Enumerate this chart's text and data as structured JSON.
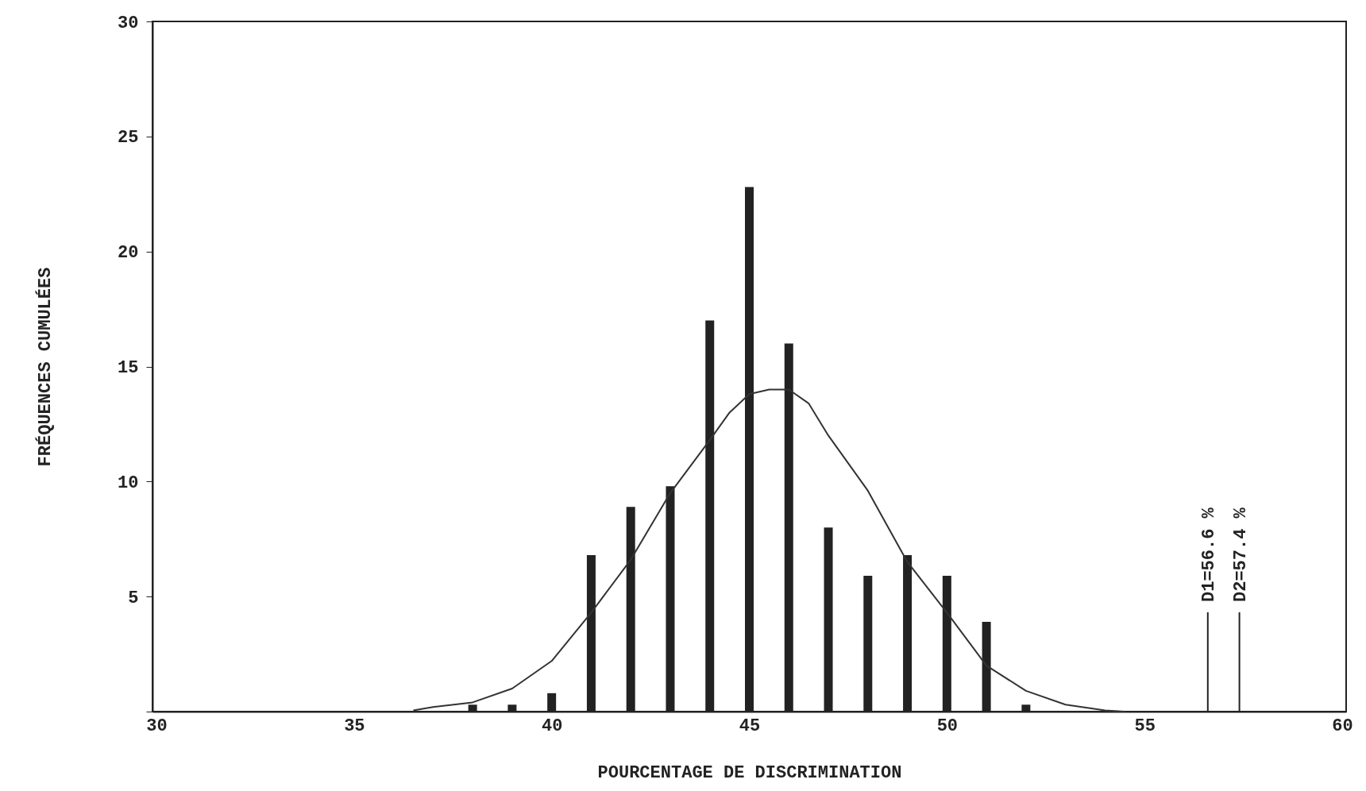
{
  "chart_data": {
    "type": "bar",
    "xlabel": "POURCENTAGE DE DISCRIMINATION",
    "ylabel": "FRÉQUENCES CUMULÉES",
    "x": [
      38,
      39,
      40,
      41,
      42,
      43,
      44,
      45,
      46,
      47,
      48,
      49,
      50,
      51,
      52
    ],
    "xlim": [
      30,
      60
    ],
    "xticks": [
      30,
      35,
      40,
      45,
      50,
      55,
      60
    ],
    "ylim": [
      0,
      30
    ],
    "yticks": [
      {
        "value": 0,
        "label": null
      },
      5,
      10,
      15,
      20,
      25,
      30
    ],
    "series": [
      {
        "color": "#222222",
        "values": [
          0.3,
          0.3,
          0.8,
          6.8,
          8.9,
          9.8,
          17,
          22.8,
          16,
          8,
          5.9,
          6.8,
          5.9,
          3.9,
          0.3
        ]
      },
      {
        "type": "line",
        "color": "#333333",
        "x": [
          36.5,
          37,
          38,
          39,
          40,
          41,
          42,
          43,
          44,
          44.5,
          45,
          45.5,
          46,
          46.5,
          47,
          48,
          49,
          50,
          51,
          52,
          53,
          54,
          54.5
        ],
        "values": [
          0.05,
          0.2,
          0.4,
          1.0,
          2.2,
          4.3,
          6.6,
          9.5,
          11.8,
          13.0,
          13.8,
          14.0,
          14.0,
          13.4,
          12.0,
          9.6,
          6.5,
          4.3,
          2.0,
          0.9,
          0.3,
          0.05,
          0
        ]
      }
    ],
    "ref_lines": [
      {
        "axis": "x",
        "value": 56.6,
        "label": "D1=56.6 %"
      },
      {
        "axis": "x",
        "value": 57.4,
        "label": "D2=57.4 %"
      }
    ],
    "grid": false
  }
}
